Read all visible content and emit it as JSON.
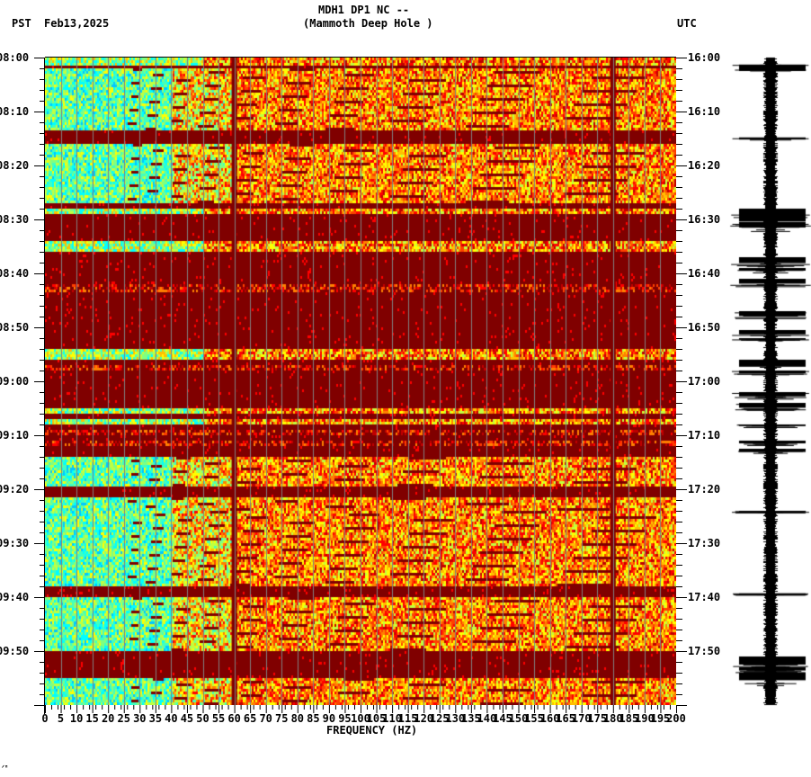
{
  "header": {
    "station_line": "MDH1 DP1 NC --",
    "site_line": "(Mammoth Deep Hole )",
    "left_tz": "PST",
    "date": "Feb13,2025",
    "right_tz": "UTC"
  },
  "footer_mark": "ᐟᴴ",
  "chart_data": {
    "type": "heatmap",
    "title": "MDH1 DP1 NC -- (Mammoth Deep Hole )",
    "xlabel": "FREQUENCY (HZ)",
    "ylabel_left": "PST",
    "ylabel_right": "UTC",
    "xlim": [
      0,
      200
    ],
    "x_ticks": [
      "0",
      "5",
      "10",
      "15",
      "20",
      "25",
      "30",
      "35",
      "40",
      "45",
      "50",
      "55",
      "60",
      "65",
      "70",
      "75",
      "80",
      "85",
      "90",
      "95",
      "100",
      "105",
      "110",
      "115",
      "120",
      "125",
      "130",
      "135",
      "140",
      "145",
      "150",
      "155",
      "160",
      "165",
      "170",
      "175",
      "180",
      "185",
      "190",
      "195",
      "200"
    ],
    "y_ticks_left": [
      "08:00",
      "08:10",
      "08:20",
      "08:30",
      "08:40",
      "08:50",
      "09:00",
      "09:10",
      "09:20",
      "09:30",
      "09:40",
      "09:50"
    ],
    "y_ticks_right": [
      "16:00",
      "16:10",
      "16:20",
      "16:30",
      "16:40",
      "16:50",
      "17:00",
      "17:10",
      "17:20",
      "17:30",
      "17:40",
      "17:50"
    ],
    "time_range_minutes": 120,
    "colormap": [
      "#00007f",
      "#0080ff",
      "#00ffff",
      "#80ff80",
      "#ffff00",
      "#ff8000",
      "#ff0000",
      "#800000"
    ],
    "persistent_lines_hz": [
      60,
      180
    ],
    "bands": [
      {
        "start_min": 0,
        "end_min": 1.2,
        "level": "mixed"
      },
      {
        "start_min": 1.2,
        "end_min": 2,
        "level": "high"
      },
      {
        "start_min": 2,
        "end_min": 13.5,
        "level": "quiet"
      },
      {
        "start_min": 13.5,
        "end_min": 16,
        "level": "high"
      },
      {
        "start_min": 16,
        "end_min": 27,
        "level": "quiet"
      },
      {
        "start_min": 27,
        "end_min": 28,
        "level": "high"
      },
      {
        "start_min": 28,
        "end_min": 29,
        "level": "mixed"
      },
      {
        "start_min": 29,
        "end_min": 34,
        "level": "high"
      },
      {
        "start_min": 34,
        "end_min": 36,
        "level": "mixed"
      },
      {
        "start_min": 36,
        "end_min": 42,
        "level": "high"
      },
      {
        "start_min": 42,
        "end_min": 43.5,
        "level": "weak"
      },
      {
        "start_min": 43.5,
        "end_min": 54,
        "level": "high"
      },
      {
        "start_min": 54,
        "end_min": 56,
        "level": "mixed"
      },
      {
        "start_min": 56,
        "end_min": 57,
        "level": "high"
      },
      {
        "start_min": 57,
        "end_min": 58,
        "level": "weak"
      },
      {
        "start_min": 58,
        "end_min": 65,
        "level": "high"
      },
      {
        "start_min": 65,
        "end_min": 66,
        "level": "mixed"
      },
      {
        "start_min": 66,
        "end_min": 67,
        "level": "high"
      },
      {
        "start_min": 67,
        "end_min": 68,
        "level": "mixed"
      },
      {
        "start_min": 68,
        "end_min": 69,
        "level": "high"
      },
      {
        "start_min": 69,
        "end_min": 70,
        "level": "weak"
      },
      {
        "start_min": 70,
        "end_min": 71,
        "level": "high"
      },
      {
        "start_min": 71,
        "end_min": 72,
        "level": "weak"
      },
      {
        "start_min": 72,
        "end_min": 74,
        "level": "high"
      },
      {
        "start_min": 74,
        "end_min": 79.5,
        "level": "quiet"
      },
      {
        "start_min": 79.5,
        "end_min": 81.5,
        "level": "high"
      },
      {
        "start_min": 81.5,
        "end_min": 98,
        "level": "quiet"
      },
      {
        "start_min": 98,
        "end_min": 100,
        "level": "high"
      },
      {
        "start_min": 100,
        "end_min": 110,
        "level": "quiet"
      },
      {
        "start_min": 110,
        "end_min": 115,
        "level": "high"
      },
      {
        "start_min": 115,
        "end_min": 120,
        "level": "quiet"
      }
    ],
    "trace_bursts_min": [
      1.3,
      14.8,
      28,
      29,
      30.5,
      37,
      39,
      41,
      47,
      50.5,
      52,
      56,
      58,
      62,
      64,
      68,
      71,
      72.5,
      84,
      99.3,
      111,
      113,
      114
    ]
  }
}
